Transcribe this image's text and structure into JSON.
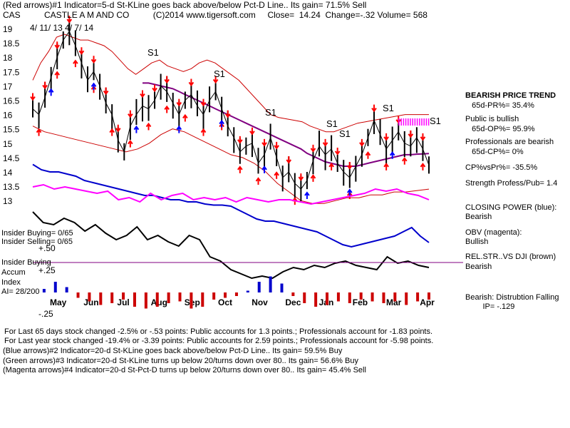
{
  "header": {
    "line1": "(Red arrows)#1 Indicator=5-d St-KLine goes back above/below Pct-D Line.. Its gain= 71.5% Sell",
    "line2": "CAS          CASTLE A M AND CO          (C)2014 www.tigersoft.com     Close=  14.24  Change=-.32 Volume= 568",
    "dates": "4/ 11/ 13   4/ 7/ 14"
  },
  "chart_data": {
    "type": "line",
    "title": "CASTLE A M AND CO",
    "ylim": [
      12.8,
      19.1
    ],
    "y_ticks": [
      "19",
      "18.5",
      "18",
      "17.5",
      "17",
      "16.5",
      "16",
      "15.5",
      "15",
      "14.5",
      "14",
      "13.5",
      "13"
    ],
    "x_ticks": [
      "May",
      "Jun",
      "Jul",
      "Aug",
      "Sep",
      "Oct",
      "Nov",
      "Dec",
      "Jan",
      "Feb",
      "Mar",
      "Apr"
    ],
    "price_close": [
      16.2,
      16.0,
      16.6,
      17.3,
      18.0,
      18.6,
      18.9,
      18.4,
      17.8,
      17.2,
      17.5,
      17.0,
      16.4,
      16.0,
      15.1,
      14.7,
      15.6,
      16.0,
      16.3,
      16.2,
      16.5,
      17.0,
      16.8,
      16.4,
      16.0,
      16.5,
      16.7,
      16.3,
      16.0,
      16.5,
      16.8,
      16.2,
      15.6,
      15.2,
      14.7,
      14.9,
      15.0,
      14.3,
      14.6,
      15.2,
      14.5,
      13.8,
      14.0,
      13.6,
      13.4,
      13.7,
      14.4,
      14.9,
      14.6,
      14.8,
      14.3,
      14.0,
      13.8,
      14.2,
      14.6,
      15.2,
      15.8,
      15.3,
      14.8,
      15.1,
      15.4,
      15.0,
      14.9,
      15.2,
      14.8,
      14.24
    ],
    "ma_purple": [
      null,
      null,
      null,
      null,
      null,
      null,
      null,
      null,
      null,
      null,
      null,
      null,
      null,
      null,
      null,
      null,
      null,
      null,
      17.1,
      17.1,
      17.05,
      17.0,
      16.95,
      16.9,
      16.8,
      16.7,
      16.6,
      16.5,
      16.4,
      16.3,
      16.2,
      16.1,
      16.0,
      15.9,
      15.8,
      15.7,
      15.6,
      15.5,
      15.4,
      15.3,
      15.2,
      15.1,
      15.0,
      14.9,
      14.8,
      14.65,
      14.55,
      14.45,
      14.35,
      14.3,
      14.25,
      14.2,
      14.2,
      14.2,
      14.25,
      14.3,
      14.35,
      14.4,
      14.45,
      14.5,
      14.55,
      14.6,
      14.6,
      14.62,
      14.63,
      14.64
    ],
    "band_upper_red": [
      17.2,
      17.8,
      18.2,
      18.7,
      18.8,
      18.7,
      18.6,
      18.6,
      18.5,
      18.4,
      18.2,
      17.9,
      17.6,
      17.4,
      17.6,
      17.8,
      17.9,
      17.7,
      17.6,
      17.5,
      17.6,
      17.8,
      17.9,
      17.8,
      17.6,
      17.4,
      17.2,
      16.9,
      16.6,
      16.3,
      16.0,
      15.9,
      15.85,
      15.8,
      15.75,
      15.6,
      15.5,
      15.4,
      15.4,
      15.5,
      15.6,
      15.7,
      15.75,
      15.8,
      15.85,
      15.9,
      15.95,
      16.0,
      16.0,
      16.0,
      16.0
    ],
    "band_lower_red": [
      15.6,
      15.4,
      15.3,
      15.2,
      15.1,
      15.0,
      14.9,
      14.8,
      14.7,
      14.8,
      15.0,
      15.3,
      15.5,
      15.4,
      15.2,
      15.0,
      14.8,
      14.6,
      14.5,
      14.3,
      14.0,
      13.6,
      13.3,
      13.0,
      12.9,
      12.9,
      13.0,
      13.1,
      13.1,
      13.2,
      13.2,
      13.3,
      13.3,
      13.35,
      13.4
    ],
    "closing_power_blue": [
      0.93,
      0.88,
      0.86,
      0.86,
      0.84,
      0.82,
      0.78,
      0.76,
      0.74,
      0.72,
      0.7,
      0.68,
      0.66,
      0.64,
      0.64,
      0.62,
      0.6,
      0.6,
      0.58,
      0.58,
      0.56,
      0.55,
      0.55,
      0.54,
      0.5,
      0.46,
      0.42,
      0.4,
      0.4,
      0.38,
      0.36,
      0.34,
      0.32,
      0.3,
      0.26,
      0.22,
      0.18,
      0.16,
      0.18,
      0.2,
      0.22,
      0.24,
      0.26,
      0.3,
      0.34,
      0.26,
      0.2
    ],
    "obv_magenta": [
      0.42,
      0.44,
      0.4,
      0.42,
      0.4,
      0.38,
      0.36,
      0.38,
      0.3,
      0.32,
      0.28,
      0.36,
      0.3,
      0.34,
      0.36,
      0.3,
      0.32,
      0.3,
      0.32,
      0.28,
      0.32,
      0.3,
      0.28,
      0.3,
      0.3,
      0.28,
      0.26,
      0.28,
      0.3,
      0.32,
      0.34,
      0.36,
      0.4,
      0.38,
      0.4,
      0.36,
      0.34,
      0.3
    ],
    "rel_str_black": [
      0.72,
      0.62,
      0.6,
      0.66,
      0.62,
      0.54,
      0.6,
      0.52,
      0.46,
      0.5,
      0.58,
      0.46,
      0.5,
      0.44,
      0.4,
      0.5,
      0.46,
      0.3,
      0.26,
      0.18,
      0.14,
      0.1,
      0.12,
      0.1,
      0.16,
      0.2,
      0.18,
      0.22,
      0.2,
      0.24,
      0.26,
      0.22,
      0.2,
      0.18,
      0.3,
      0.24,
      0.26,
      0.22,
      0.2
    ],
    "accum_index": [
      0.0,
      0.2,
      0.6,
      0.3,
      -0.3,
      -0.5,
      -0.7,
      -0.6,
      -0.4,
      -0.8,
      -0.9,
      -0.8,
      -0.6,
      -0.5,
      -0.9,
      -0.8,
      -0.4,
      -0.3,
      -0.2,
      0.1,
      0.6,
      0.9,
      0.5,
      -0.2,
      -0.6,
      -0.8,
      -0.7,
      -0.5,
      -0.6,
      -0.4,
      -0.5,
      -0.6,
      -0.5,
      -0.7,
      -0.5,
      -0.4
    ],
    "signal_labels": [
      "S1",
      "S1",
      "S1",
      "S1",
      "S1",
      "S1",
      "S1"
    ],
    "volume_y_labels": [
      " +.50",
      " +.25",
      " -.25"
    ]
  },
  "indicator_labels": {
    "insider_buying": "Insider Buying= 0/65",
    "insider_selling": "Insider Selling= 0/65",
    "insider_buying2": "Insider Buying",
    "accum": "Accum",
    "index": "Index",
    "ai": "AI= 28/200"
  },
  "right_panel": [
    {
      "text": "BEARISH PRICE TREND",
      "bold": true
    },
    {
      "text": "   65d-PR%= 35.4%",
      "bold": false
    },
    {
      "text": "Public is bullish",
      "bold": false
    },
    {
      "text": "   65d-OP%= 95.9%",
      "bold": false
    },
    {
      "text": "Professionals are bearish",
      "bold": false
    },
    {
      "text": "   65d-CP%= 0%",
      "bold": false
    },
    {
      "text": "CP%vsPr%= -35.5%",
      "bold": false
    },
    {
      "text": "Strength Profess/Pub= 1.4",
      "bold": false
    },
    {
      "text": "CLOSING POWER (blue):",
      "bold": false
    },
    {
      "text": "Bearish",
      "bold": false
    },
    {
      "text": "OBV (magenta):",
      "bold": false
    },
    {
      "text": "Bullish",
      "bold": false
    },
    {
      "text": "REL.STR..VS DJI (brown)",
      "bold": false
    },
    {
      "text": "Bearish",
      "bold": false
    },
    {
      "text": "Bearish:  Distrubtion Falling",
      "bold": false
    },
    {
      "text": "        IP= -.129",
      "bold": false
    }
  ],
  "footer": [
    "For Last 65 days stock changed -2.5% or -.53 points:  Public accounts for  1.3 points.;  Professionals account for -1.83 points.",
    "For Last year stock changed -19.4% or -3.39 points:  Public accounts for  2.59 points.;  Professionals account for -5.98 points.",
    "(Blue arrows)#2 Indicator=20-d St-KLine goes back above/below Pct-D Line.. Its gain= 59.5% Buy",
    "(Green arrows)#3 Indicator=20-d St-KLine turns up below 20/turns down over 80.. Its gain= 56.6% Buy",
    "(Magenta arrows)#4 Indicator=20-d St-Pct-D turns up below 20/turns down over 80.. Its gain= 45.4% Sell"
  ],
  "colors": {
    "price": "#000000",
    "ma": "#800080",
    "band": "#cc0000",
    "closing_power": "#0000cc",
    "obv": "#ff00ff",
    "rel_str": "#000000",
    "accum_pos": "#0000cc",
    "accum_neg": "#cc0000",
    "sell_arrow": "#ff0000",
    "buy_arrow": "#0000ff"
  }
}
